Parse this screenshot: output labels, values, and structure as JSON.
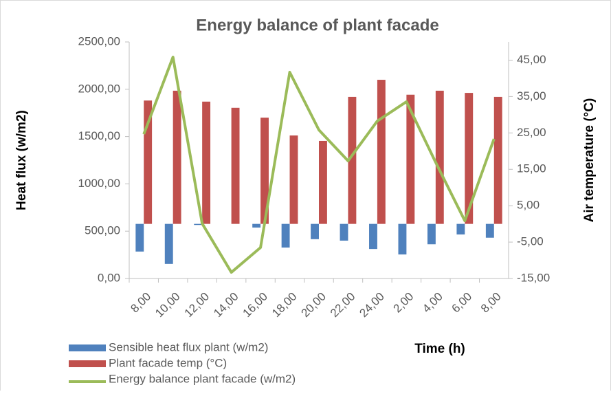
{
  "chart_data": {
    "type": "bar_line",
    "title": "Energy balance of plant facade",
    "y_label": "Heat flux (w/m2)",
    "y2_label": "Air temperature (°C)",
    "x_label": "Time (h)",
    "categories": [
      "8,00",
      "10,00",
      "12,00",
      "14,00",
      "16,00",
      "18,00",
      "20,00",
      "22,00",
      "24,00",
      "2,00",
      "4,00",
      "6,00",
      "8,00"
    ],
    "series": [
      {
        "name": "Sensible heat flux plant (w/m2)",
        "color": "#4f81bd",
        "kind": "bar",
        "axis": "y2",
        "values": [
          -7.6,
          -11.0,
          -0.3,
          0,
          -1.0,
          -6.5,
          -4.2,
          -4.6,
          -6.9,
          -8.4,
          -5.6,
          -2.9,
          -3.8
        ]
      },
      {
        "name": "Plant facade temp (°C)",
        "color": "#c0504d",
        "kind": "bar",
        "axis": "y2",
        "values": [
          33.9,
          36.6,
          33.6,
          31.9,
          29.2,
          24.3,
          22.8,
          34.9,
          39.6,
          35.5,
          36.6,
          36.0,
          34.9
        ]
      },
      {
        "name": "Energy balance plant facade (w/m2)",
        "color": "#9bbb59",
        "kind": "line",
        "axis": "y",
        "values": [
          1526,
          2340,
          581,
          65,
          327,
          2180,
          1570,
          1243,
          1664,
          1868,
          1228,
          610,
          1475
        ]
      }
    ],
    "ylim": [
      0,
      2500
    ],
    "yticks": [
      {
        "value": 0,
        "label": "0,00"
      },
      {
        "value": 500,
        "label": "500,00"
      },
      {
        "value": 1000,
        "label": "1000,00"
      },
      {
        "value": 1500,
        "label": "1500,00"
      },
      {
        "value": 2000,
        "label": "2000,00"
      },
      {
        "value": 2500,
        "label": "2500,00"
      }
    ],
    "y2lim": [
      -15,
      50
    ],
    "y2ticks": [
      {
        "value": -15,
        "label": "-15,00"
      },
      {
        "value": -5,
        "label": "-5,00"
      },
      {
        "value": 5,
        "label": "5,00"
      },
      {
        "value": 15,
        "label": "15,00"
      },
      {
        "value": 25,
        "label": "25,00"
      },
      {
        "value": 35,
        "label": "35,00"
      },
      {
        "value": 45,
        "label": "45,00"
      }
    ],
    "legend": "bottom-left"
  }
}
